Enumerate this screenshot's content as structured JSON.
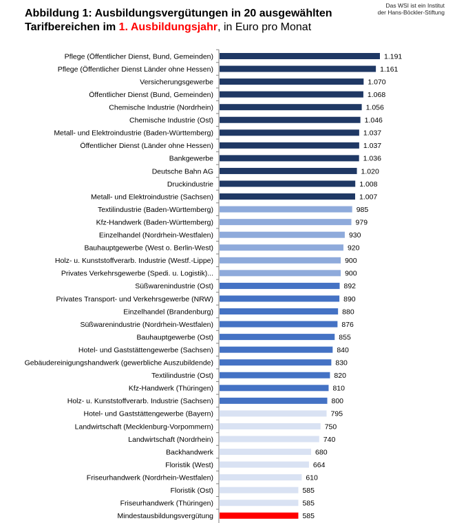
{
  "header": {
    "title_line1": "Abbildung 1: Ausbildungsvergütungen in 20 ausgewählten",
    "title_line2_bold": "Tarifbereichen im ",
    "title_line2_highlight": "1. Ausbildungsjahr",
    "title_line2_rest": ", in Euro pro Monat",
    "source_line1": "Das WSI ist ein Institut",
    "source_line2": "der Hans-Böckler-Stiftung"
  },
  "colors": {
    "dark_navy": "#1f3864",
    "light_blue": "#8eaadb",
    "medium_blue": "#4472c4",
    "pale_blue": "#d9e2f3",
    "red": "#ff0000",
    "title_highlight": "#ff0000"
  },
  "chart_data": {
    "type": "bar",
    "orientation": "horizontal",
    "title": "Abbildung 1: Ausbildungsvergütungen in 20 ausgewählten Tarifbereichen im 1. Ausbildungsjahr, in Euro pro Monat",
    "xlim": [
      0,
      1200
    ],
    "categories": [
      "Pflege (Öffentlicher Dienst, Bund, Gemeinden)",
      "Pflege (Öffentlicher Dienst Länder ohne Hessen)",
      "Versicherungsgewerbe",
      "Öffentlicher Dienst (Bund, Gemeinden)",
      "Chemische Industrie (Nordrhein)",
      "Chemische Industrie (Ost)",
      "Metall- und Elektroindustrie (Baden-Württemberg)",
      "Öffentlicher Dienst (Länder ohne Hessen)",
      "Bankgewerbe",
      "Deutsche Bahn AG",
      "Druckindustrie",
      "Metall- und Elektroindustrie (Sachsen)",
      "Textilindustrie (Baden-Württemberg)",
      "Kfz-Handwerk (Baden-Württemberg)",
      "Einzelhandel (Nordrhein-Westfalen)",
      "Bauhauptgewerbe (West o. Berlin-West)",
      "Holz- u. Kunststoffverarb. Industrie (Westf.-Lippe)",
      "Privates Verkehrsgewerbe (Spedi. u. Logistik)...",
      "Süßwarenindustrie (Ost)",
      "Privates Transport- und Verkehrsgewerbe (NRW)",
      "Einzelhandel (Brandenburg)",
      "Süßwarenindustrie (Nordrhein-Westfalen)",
      "Bauhauptgewerbe (Ost)",
      "Hotel- und Gaststättengewerbe (Sachsen)",
      "Gebäudereinigungshandwerk (gewerbliche Auszubildende)",
      "Textilindustrie (Ost)",
      "Kfz-Handwerk (Thüringen)",
      "Holz- u. Kunststoffverarb. Industrie (Sachsen)",
      "Hotel- und Gaststättengewerbe (Bayern)",
      "Landwirtschaft (Mecklenburg-Vorpommern)",
      "Landwirtschaft (Nordrhein)",
      "Backhandwerk",
      "Floristik (West)",
      "Friseurhandwerk (Nordrhein-Westfalen)",
      "Floristik (Ost)",
      "Friseurhandwerk (Thüringen)",
      "Mindestausbildungsvergütung"
    ],
    "values": [
      1191,
      1161,
      1070,
      1068,
      1056,
      1046,
      1037,
      1037,
      1036,
      1020,
      1008,
      1007,
      985,
      979,
      930,
      920,
      900,
      900,
      892,
      890,
      880,
      876,
      855,
      840,
      830,
      820,
      810,
      800,
      795,
      750,
      740,
      680,
      664,
      610,
      585,
      585,
      585
    ],
    "value_labels": [
      "1.191",
      "1.161",
      "1.070",
      "1.068",
      "1.056",
      "1.046",
      "1.037",
      "1.037",
      "1.036",
      "1.020",
      "1.008",
      "1.007",
      "985",
      "979",
      "930",
      "920",
      "900",
      "900",
      "892",
      "890",
      "880",
      "876",
      "855",
      "840",
      "830",
      "820",
      "810",
      "800",
      "795",
      "750",
      "740",
      "680",
      "664",
      "610",
      "585",
      "585",
      "585"
    ],
    "bar_colors": [
      "dark_navy",
      "dark_navy",
      "dark_navy",
      "dark_navy",
      "dark_navy",
      "dark_navy",
      "dark_navy",
      "dark_navy",
      "dark_navy",
      "dark_navy",
      "dark_navy",
      "dark_navy",
      "light_blue",
      "light_blue",
      "light_blue",
      "light_blue",
      "light_blue",
      "light_blue",
      "medium_blue",
      "medium_blue",
      "medium_blue",
      "medium_blue",
      "medium_blue",
      "medium_blue",
      "medium_blue",
      "medium_blue",
      "medium_blue",
      "medium_blue",
      "pale_blue",
      "pale_blue",
      "pale_blue",
      "pale_blue",
      "pale_blue",
      "pale_blue",
      "pale_blue",
      "pale_blue",
      "red"
    ],
    "grid": false,
    "legend": "none"
  }
}
